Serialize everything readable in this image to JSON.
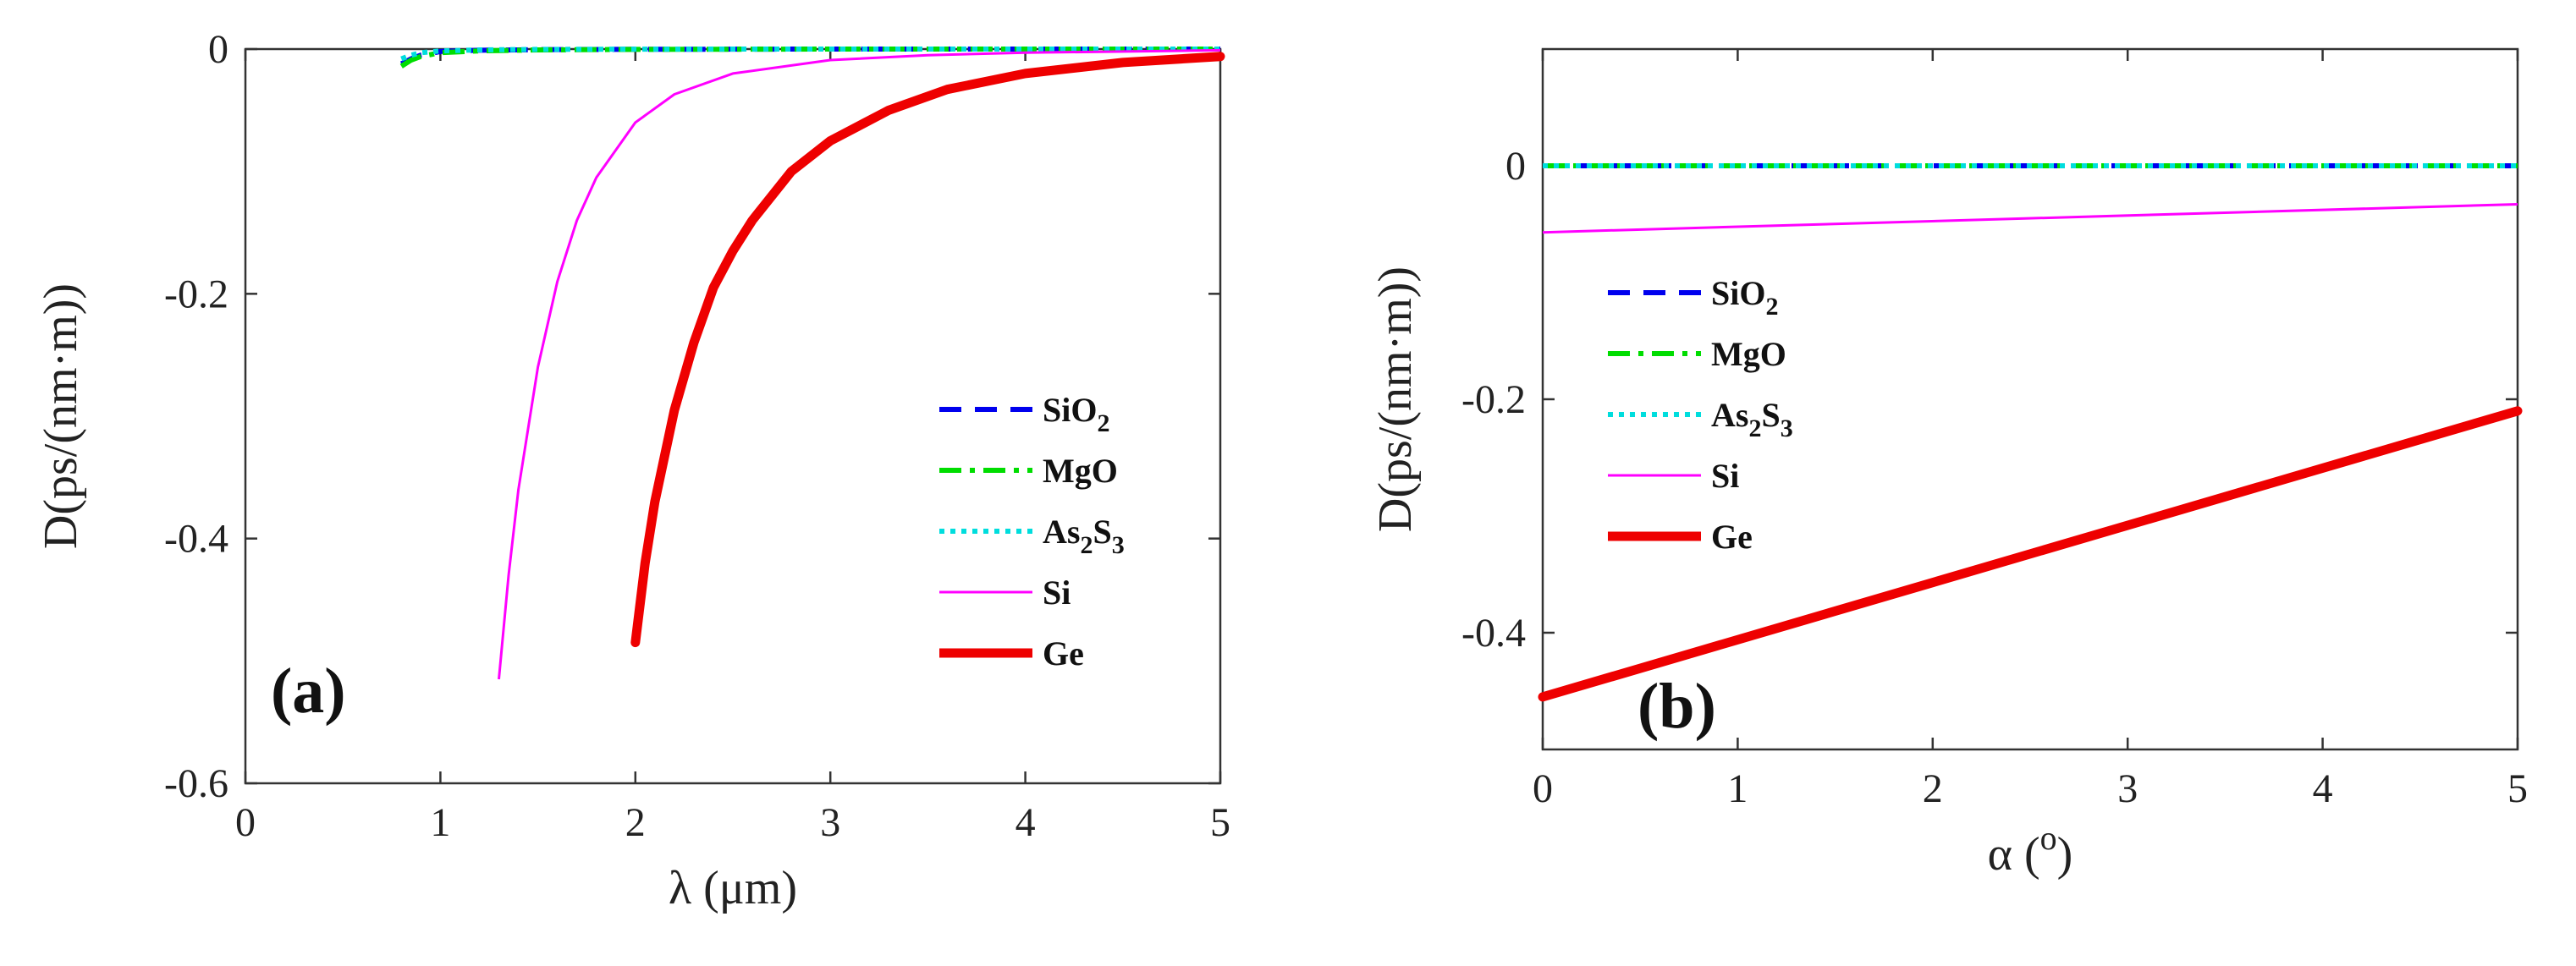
{
  "chart_data": [
    {
      "type": "line",
      "panel_label": "(a)",
      "xlabel": "λ (μm)",
      "ylabel": "D(ps/(nm·m))",
      "xlim": [
        0,
        5
      ],
      "ylim": [
        -0.6,
        0
      ],
      "xticks": [
        0,
        1,
        2,
        3,
        4,
        5
      ],
      "yticks": [
        0,
        -0.2,
        -0.4,
        -0.6
      ],
      "xtick_labels": [
        "0",
        "1",
        "2",
        "3",
        "4",
        "5"
      ],
      "ytick_labels": [
        "0",
        "-0.2",
        "-0.4",
        "-0.6"
      ],
      "legend_position": "lower-right",
      "series": [
        {
          "name": "SiO2",
          "label_parts": [
            [
              "SiO",
              ""
            ],
            [
              "2",
              "sub"
            ]
          ],
          "color": "#0000ee",
          "style": "dashed",
          "x": [
            0.8,
            0.85,
            0.9,
            1.0,
            1.2,
            1.5,
            2.0,
            3.0,
            4.0,
            5.0
          ],
          "y": [
            -0.012,
            -0.008,
            -0.005,
            -0.002,
            -0.001,
            -0.0005,
            -0.0002,
            0,
            0,
            0
          ]
        },
        {
          "name": "MgO",
          "label_parts": [
            [
              "MgO",
              ""
            ]
          ],
          "color": "#00dd00",
          "style": "dashdot",
          "x": [
            0.8,
            0.85,
            0.9,
            1.0,
            1.2,
            1.5,
            2.0,
            3.0,
            4.0,
            5.0
          ],
          "y": [
            -0.014,
            -0.009,
            -0.006,
            -0.003,
            -0.0015,
            -0.0007,
            -0.0003,
            0,
            0,
            0
          ]
        },
        {
          "name": "As2S3",
          "label_parts": [
            [
              "As",
              ""
            ],
            [
              "2",
              "sub"
            ],
            [
              "S",
              ""
            ],
            [
              "3",
              "sub"
            ]
          ],
          "color": "#00dddd",
          "style": "dotted",
          "x": [
            0.8,
            0.85,
            0.9,
            1.0,
            1.2,
            1.5,
            2.0,
            3.0,
            4.0,
            5.0
          ],
          "y": [
            -0.008,
            -0.005,
            -0.003,
            -0.0015,
            -0.0007,
            -0.0003,
            -0.0001,
            0,
            0,
            0
          ]
        },
        {
          "name": "Si",
          "label_parts": [
            [
              "Si",
              ""
            ]
          ],
          "color": "#ff00ff",
          "style": "thin",
          "x": [
            1.3,
            1.35,
            1.4,
            1.5,
            1.6,
            1.7,
            1.8,
            2.0,
            2.2,
            2.5,
            3.0,
            3.5,
            4.0,
            5.0
          ],
          "y": [
            -0.515,
            -0.43,
            -0.36,
            -0.26,
            -0.19,
            -0.14,
            -0.105,
            -0.06,
            -0.037,
            -0.02,
            -0.009,
            -0.005,
            -0.003,
            -0.001
          ]
        },
        {
          "name": "Ge",
          "label_parts": [
            [
              "Ge",
              ""
            ]
          ],
          "color": "#ee0000",
          "style": "thick",
          "x": [
            2.0,
            2.05,
            2.1,
            2.2,
            2.3,
            2.4,
            2.5,
            2.6,
            2.8,
            3.0,
            3.3,
            3.6,
            4.0,
            4.5,
            5.0
          ],
          "y": [
            -0.485,
            -0.42,
            -0.37,
            -0.295,
            -0.24,
            -0.195,
            -0.165,
            -0.14,
            -0.1,
            -0.075,
            -0.05,
            -0.033,
            -0.02,
            -0.011,
            -0.006
          ]
        }
      ]
    },
    {
      "type": "line",
      "panel_label": "(b)",
      "xlabel": "α (o)",
      "ylabel": "D(ps/(nm·m))",
      "xlim": [
        0,
        5
      ],
      "ylim": [
        -0.5,
        0.1
      ],
      "xticks": [
        0,
        1,
        2,
        3,
        4,
        5
      ],
      "yticks": [
        0,
        -0.2,
        -0.4
      ],
      "xtick_labels": [
        "0",
        "1",
        "2",
        "3",
        "4",
        "5"
      ],
      "ytick_labels": [
        "0",
        "-0.2",
        "-0.4"
      ],
      "legend_position": "center-left",
      "series": [
        {
          "name": "SiO2",
          "label_parts": [
            [
              "SiO",
              ""
            ],
            [
              "2",
              "sub"
            ]
          ],
          "color": "#0000ee",
          "style": "dashed",
          "x": [
            0,
            5
          ],
          "y": [
            0,
            0
          ]
        },
        {
          "name": "MgO",
          "label_parts": [
            [
              "MgO",
              ""
            ]
          ],
          "color": "#00dd00",
          "style": "dashdot",
          "x": [
            0,
            5
          ],
          "y": [
            0,
            0
          ]
        },
        {
          "name": "As2S3",
          "label_parts": [
            [
              "As",
              ""
            ],
            [
              "2",
              "sub"
            ],
            [
              "S",
              ""
            ],
            [
              "3",
              "sub"
            ]
          ],
          "color": "#00dddd",
          "style": "dotted",
          "x": [
            0,
            5
          ],
          "y": [
            0,
            0
          ]
        },
        {
          "name": "Si",
          "label_parts": [
            [
              "Si",
              ""
            ]
          ],
          "color": "#ff00ff",
          "style": "thin",
          "x": [
            0,
            5
          ],
          "y": [
            -0.057,
            -0.033
          ]
        },
        {
          "name": "Ge",
          "label_parts": [
            [
              "Ge",
              ""
            ]
          ],
          "color": "#ee0000",
          "style": "thick",
          "x": [
            0,
            5
          ],
          "y": [
            -0.455,
            -0.21
          ]
        }
      ]
    }
  ]
}
